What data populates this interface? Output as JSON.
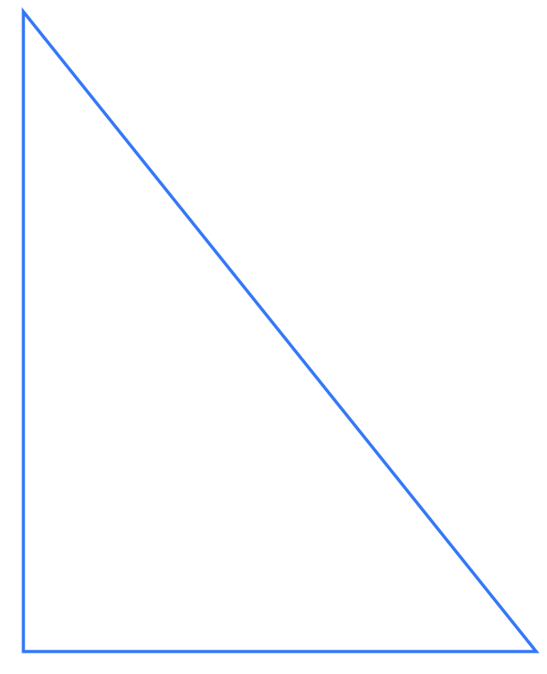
{
  "diagram": {
    "shape": "right-triangle",
    "stroke_color": "#3478f6",
    "fill_color": "none"
  }
}
